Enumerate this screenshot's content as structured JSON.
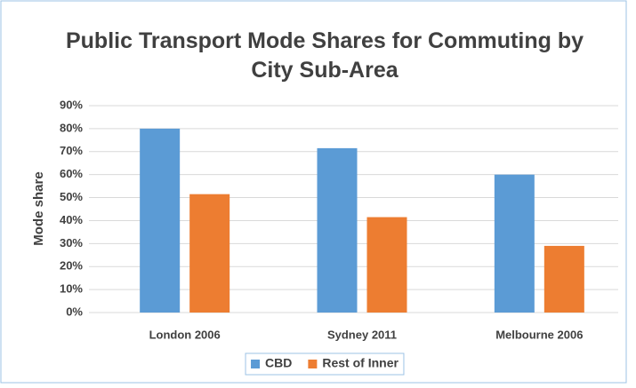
{
  "chart_data": {
    "type": "bar",
    "title": "Public Transport Mode Shares for Commuting by City Sub-Area",
    "y_label": "Mode share",
    "categories": [
      "London 2006",
      "Sydney 2011",
      "Melbourne 2006"
    ],
    "series": [
      {
        "name": "CBD",
        "color": "#5b9bd5",
        "values": [
          80,
          71.5,
          60
        ]
      },
      {
        "name": "Rest of Inner",
        "color": "#ed7d31",
        "values": [
          51.5,
          41.5,
          29
        ]
      }
    ],
    "ylim": [
      0,
      90
    ],
    "yticks": [
      {
        "value": 0,
        "label": "0%"
      },
      {
        "value": 10,
        "label": "10%"
      },
      {
        "value": 20,
        "label": "20%"
      },
      {
        "value": 30,
        "label": "30%"
      },
      {
        "value": 40,
        "label": "40%"
      },
      {
        "value": 50,
        "label": "50%"
      },
      {
        "value": 60,
        "label": "60%"
      },
      {
        "value": 70,
        "label": "70%"
      },
      {
        "value": 80,
        "label": "80%"
      },
      {
        "value": 90,
        "label": "90%"
      }
    ],
    "grid": true,
    "legend": "bottom"
  }
}
